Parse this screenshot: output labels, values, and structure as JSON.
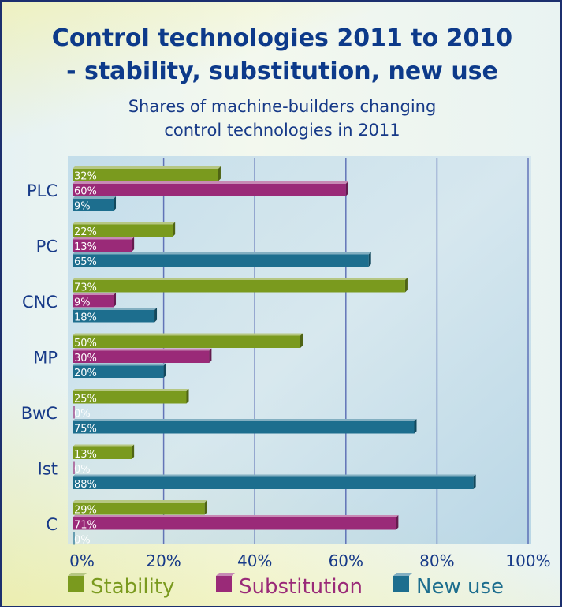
{
  "chart_data": {
    "type": "bar",
    "orientation": "horizontal",
    "title": "Control technologies 2011 to 2010 - stability, substitution, new use",
    "title_lines": [
      "Control technologies 2011 to 2010",
      "- stability, substitution, new use"
    ],
    "subtitle_lines": [
      "Shares of machine-builders changing",
      "control technologies in 2011"
    ],
    "categories": [
      "PLC",
      "PC",
      "CNC",
      "MP",
      "BwC",
      "Ist",
      "C"
    ],
    "series": [
      {
        "name": "Stability",
        "color": "#7a9a1e",
        "values": [
          32,
          22,
          73,
          50,
          25,
          13,
          29
        ],
        "labels": [
          "32%",
          "22%",
          "73%",
          "50%",
          "25%",
          "13%",
          "29%"
        ]
      },
      {
        "name": "Substitution",
        "color": "#9a2a78",
        "values": [
          60,
          13,
          9,
          30,
          0,
          0,
          71
        ],
        "labels": [
          "60%",
          "13%",
          "9%",
          "30%",
          "0%",
          "0%",
          "71%"
        ]
      },
      {
        "name": "New use",
        "color": "#1d6e8e",
        "values": [
          9,
          65,
          18,
          20,
          75,
          88,
          0
        ],
        "labels": [
          "9%",
          "65%",
          "18%",
          "20%",
          "75%",
          "88%",
          "0%"
        ]
      }
    ],
    "xlim": [
      0,
      100
    ],
    "x_ticks": [
      "0%",
      "20%",
      "40%",
      "60%",
      "80%",
      "100%"
    ],
    "grid": true,
    "legend_position": "bottom"
  }
}
